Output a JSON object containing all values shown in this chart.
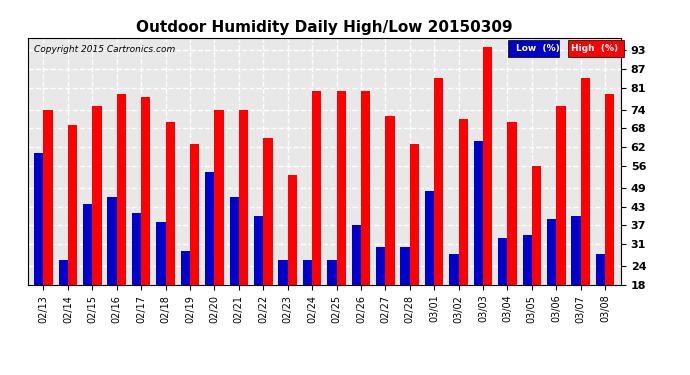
{
  "title": "Outdoor Humidity Daily High/Low 20150309",
  "copyright": "Copyright 2015 Cartronics.com",
  "categories": [
    "02/13",
    "02/14",
    "02/15",
    "02/16",
    "02/17",
    "02/18",
    "02/19",
    "02/20",
    "02/21",
    "02/22",
    "02/23",
    "02/24",
    "02/25",
    "02/26",
    "02/27",
    "02/28",
    "03/01",
    "03/02",
    "03/03",
    "03/04",
    "03/05",
    "03/06",
    "03/07",
    "03/08"
  ],
  "high_values": [
    74,
    69,
    75,
    79,
    78,
    70,
    63,
    74,
    74,
    65,
    53,
    80,
    80,
    80,
    72,
    63,
    84,
    71,
    94,
    70,
    56,
    75,
    84,
    79
  ],
  "low_values": [
    60,
    26,
    44,
    46,
    41,
    38,
    29,
    54,
    46,
    40,
    26,
    26,
    26,
    37,
    30,
    30,
    48,
    28,
    64,
    33,
    34,
    39,
    40,
    28
  ],
  "high_color": "#ff0000",
  "low_color": "#0000cc",
  "bg_color": "#ffffff",
  "grid_color": "#c8c8c8",
  "ylim_min": 18,
  "ylim_max": 97,
  "yticks": [
    18,
    24,
    31,
    37,
    43,
    49,
    56,
    62,
    68,
    74,
    81,
    87,
    93
  ],
  "legend_low_label": "Low  (%)",
  "legend_high_label": "High  (%)",
  "title_fontsize": 11,
  "tick_fontsize": 8,
  "xlabel_fontsize": 7
}
